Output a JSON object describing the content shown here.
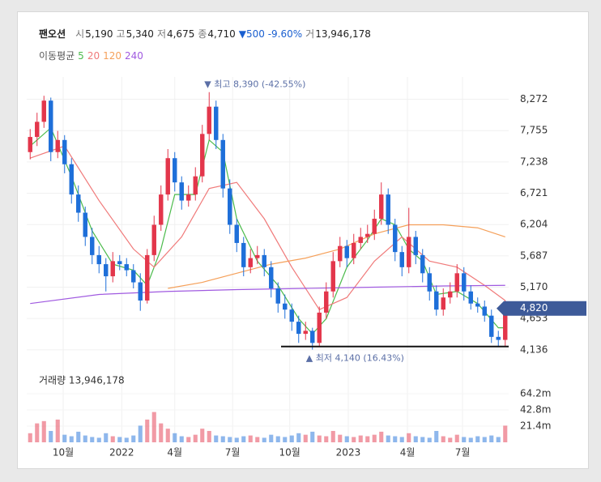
{
  "header": {
    "name": "팬오션",
    "quotes": [
      {
        "label": "시",
        "value": "5,190"
      },
      {
        "label": "고",
        "value": "5,340"
      },
      {
        "label": "저",
        "value": "4,675"
      },
      {
        "label": "종",
        "value": "4,710"
      }
    ],
    "change": "▼500 -9.60%",
    "volume_label": "거",
    "volume_value": "13,946,178",
    "ma_title": "이동평균"
  },
  "chart_data": {
    "type": "candlestick",
    "open": [
      7400,
      7650,
      7900,
      8250,
      7400,
      7600,
      7200,
      6700,
      6400,
      6000,
      5700,
      5550,
      5350,
      5600,
      5550,
      5450,
      5250,
      4950,
      5700,
      6200,
      6700,
      7300,
      6900,
      6600,
      6700,
      7000,
      7700,
      8150,
      7600,
      6800,
      6200,
      5900,
      5500,
      5650,
      5700,
      5500,
      5150,
      4900,
      4800,
      4600,
      4400,
      4450,
      4250,
      4750,
      5100,
      5600,
      5850,
      5650,
      5900,
      6000,
      6050,
      6300,
      6700,
      6200,
      5750,
      5500,
      6000,
      5700,
      5400,
      5100,
      4800,
      5000,
      5100,
      5400,
      5100,
      4900,
      4850,
      4700,
      4350,
      4300
    ],
    "high": [
      7780,
      8050,
      8330,
      8300,
      7750,
      7680,
      7300,
      6850,
      6500,
      6150,
      5850,
      5650,
      5750,
      5700,
      5650,
      5550,
      5400,
      5800,
      6350,
      6850,
      7450,
      7400,
      7000,
      6850,
      7150,
      7850,
      8390,
      8250,
      7700,
      6950,
      6300,
      6000,
      5800,
      5850,
      5800,
      5600,
      5250,
      5050,
      4900,
      4700,
      4600,
      4500,
      4850,
      5250,
      5750,
      6000,
      5950,
      6050,
      6150,
      6200,
      6450,
      6900,
      6800,
      6300,
      5850,
      6480,
      6100,
      5800,
      5500,
      5200,
      5150,
      5250,
      5550,
      5500,
      5200,
      5000,
      4950,
      4800,
      4450,
      4950
    ],
    "low": [
      7280,
      7500,
      7800,
      7250,
      7300,
      7050,
      6550,
      6250,
      5850,
      5550,
      5400,
      5100,
      5250,
      5450,
      5350,
      5150,
      4780,
      4900,
      5600,
      6100,
      6600,
      6750,
      6450,
      6500,
      6600,
      6900,
      7600,
      7450,
      6650,
      6050,
      5750,
      5350,
      5400,
      5550,
      5350,
      5000,
      4750,
      4650,
      4450,
      4250,
      4300,
      4140,
      4200,
      4650,
      5000,
      5500,
      5500,
      5550,
      5800,
      5900,
      5950,
      6200,
      6050,
      5600,
      5350,
      5400,
      5550,
      5250,
      4950,
      4700,
      4700,
      4900,
      5000,
      4950,
      4800,
      4750,
      4600,
      4250,
      4180,
      4200
    ],
    "close": [
      7650,
      7900,
      8250,
      7400,
      7600,
      7200,
      6700,
      6400,
      6000,
      5700,
      5550,
      5350,
      5600,
      5550,
      5450,
      5250,
      4950,
      5700,
      6200,
      6700,
      7300,
      6900,
      6600,
      6700,
      7000,
      7700,
      8150,
      7600,
      6800,
      6200,
      5900,
      5500,
      5650,
      5700,
      5500,
      5150,
      4900,
      4800,
      4600,
      4400,
      4450,
      4250,
      4750,
      5100,
      5600,
      5850,
      5650,
      5900,
      6000,
      6050,
      6300,
      6700,
      6200,
      5750,
      5500,
      6000,
      5700,
      5400,
      5100,
      4800,
      5000,
      5100,
      5400,
      5100,
      4900,
      4850,
      4700,
      4350,
      4300,
      4820
    ],
    "volume": [
      12,
      25,
      28,
      15,
      30,
      10,
      8,
      14,
      9,
      7,
      6,
      12,
      8,
      7,
      6,
      9,
      22,
      30,
      40,
      25,
      18,
      12,
      8,
      7,
      10,
      18,
      15,
      9,
      8,
      7,
      6,
      8,
      9,
      7,
      6,
      10,
      8,
      7,
      9,
      12,
      10,
      14,
      9,
      8,
      15,
      10,
      8,
      7,
      9,
      8,
      10,
      14,
      9,
      8,
      7,
      12,
      8,
      7,
      6,
      15,
      8,
      6,
      10,
      7,
      6,
      8,
      7,
      9,
      7,
      22
    ],
    "up_color": "#e3364b",
    "down_color": "#1e6fd9",
    "xlim": [
      -0.5,
      69.5
    ],
    "xticks": [
      {
        "value": 4.8,
        "label": "10월"
      },
      {
        "value": 13.3,
        "label": "2022"
      },
      {
        "value": 21,
        "label": "4월"
      },
      {
        "value": 29.4,
        "label": "7월"
      },
      {
        "value": 37.7,
        "label": "10월"
      },
      {
        "value": 46.2,
        "label": "2023"
      },
      {
        "value": 54.8,
        "label": "4월"
      },
      {
        "value": 62.8,
        "label": "7월"
      }
    ],
    "ylim": [
      3960,
      8480
    ],
    "yticks": [
      {
        "value": 8272,
        "label": "8,272"
      },
      {
        "value": 7755,
        "label": "7,755"
      },
      {
        "value": 7238,
        "label": "7,238"
      },
      {
        "value": 6721,
        "label": "6,721"
      },
      {
        "value": 6204,
        "label": "6,204"
      },
      {
        "value": 5687,
        "label": "5,687"
      },
      {
        "value": 5170,
        "label": "5,170"
      },
      {
        "value": 4653,
        "label": "4,653"
      },
      {
        "value": 4136,
        "label": "4,136"
      }
    ],
    "volume_title": "거래량 13,946,178",
    "volume_ylim": [
      0,
      95.2
    ],
    "volume_ticks": [
      {
        "value": 64.2,
        "label": "64.2m"
      },
      {
        "value": 42.8,
        "label": "42.8m"
      },
      {
        "value": 21.4,
        "label": "21.4m"
      }
    ],
    "series": [
      {
        "name": "5",
        "color": "#4cbb4c",
        "x": [
          0,
          3,
          6,
          9,
          12,
          15,
          17,
          19,
          21,
          24,
          26,
          28,
          30,
          33,
          36,
          39,
          41,
          43,
          46,
          49,
          51,
          53,
          55,
          57,
          59,
          62,
          65,
          68,
          69
        ],
        "values": [
          7500,
          7800,
          7000,
          6100,
          5550,
          5450,
          5200,
          5800,
          6700,
          6700,
          7600,
          7400,
          6300,
          5600,
          5200,
          4650,
          4400,
          4650,
          5500,
          5950,
          6300,
          6200,
          5800,
          5600,
          5050,
          5100,
          4900,
          4500,
          4500
        ]
      },
      {
        "name": "20",
        "color": "#f07a7a",
        "x": [
          0,
          5,
          10,
          15,
          18,
          22,
          26,
          30,
          34,
          38,
          42,
          46,
          50,
          54,
          58,
          62,
          66,
          69
        ],
        "values": [
          7300,
          7500,
          6600,
          5800,
          5500,
          6000,
          6800,
          6900,
          6300,
          5500,
          4800,
          5000,
          5600,
          6000,
          5600,
          5500,
          5200,
          4950
        ]
      },
      {
        "name": "120",
        "color": "#f5a05a",
        "x": [
          20,
          25,
          30,
          35,
          40,
          45,
          50,
          55,
          60,
          65,
          69
        ],
        "values": [
          5150,
          5250,
          5400,
          5550,
          5650,
          5800,
          6050,
          6200,
          6200,
          6150,
          6000
        ]
      },
      {
        "name": "240",
        "color": "#a05ae0",
        "x": [
          0,
          10,
          20,
          30,
          40,
          50,
          60,
          69
        ],
        "values": [
          4900,
          5050,
          5100,
          5130,
          5150,
          5170,
          5190,
          5200
        ]
      }
    ],
    "high_label": "▼ 최고 8,390 (-42.55%)",
    "high_at": 26,
    "low_label": "▲ 최저 4,140 (16.43%)",
    "low_at": 41,
    "support_line": 4190,
    "price_tag": {
      "value": 4820,
      "label": "4,820"
    }
  }
}
